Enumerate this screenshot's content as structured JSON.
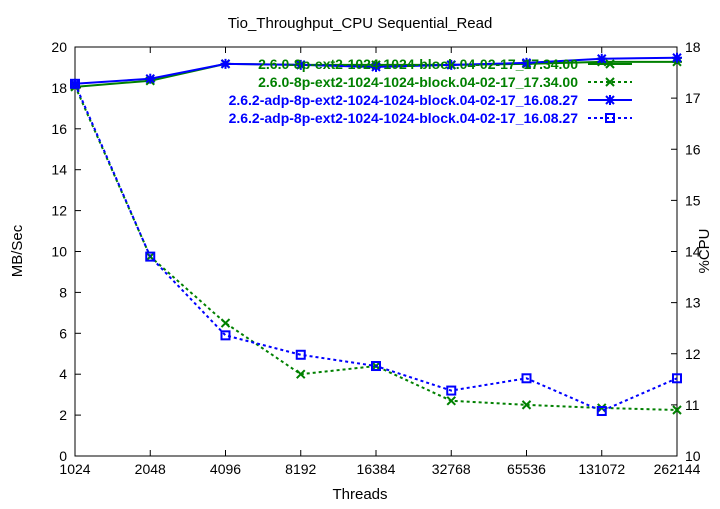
{
  "chart_data": {
    "type": "line",
    "title": "Tio_Throughput_CPU Sequential_Read",
    "xlabel": "Threads",
    "ylabel": "MB/Sec",
    "y2label": "%CPU",
    "x": [
      1024,
      2048,
      4096,
      8192,
      16384,
      32768,
      65536,
      131072,
      262144
    ],
    "x_scale": "log2",
    "ylim": [
      0,
      20
    ],
    "y2lim": [
      10,
      18
    ],
    "yticks": [
      0,
      2,
      4,
      6,
      8,
      10,
      12,
      14,
      16,
      18,
      20
    ],
    "y2ticks": [
      10,
      11,
      12,
      13,
      14,
      15,
      16,
      17,
      18
    ],
    "grid": false,
    "legend_position": "top-right",
    "series": [
      {
        "name": "2.6.0-8p-ext2-1024-1024-block.04-02-17_17.34.00",
        "axis": "y2",
        "style": "solid",
        "marker": "cross",
        "color": "#008000",
        "values": [
          17.22,
          17.34,
          17.67,
          17.65,
          17.65,
          17.65,
          17.67,
          17.71,
          17.71
        ]
      },
      {
        "name": "2.6.0-8p-ext2-1024-1024-block.04-02-17_17.34.00",
        "axis": "y",
        "style": "dotted",
        "marker": "x",
        "color": "#008000",
        "values": [
          18.1,
          9.75,
          6.5,
          4.0,
          4.4,
          2.7,
          2.5,
          2.35,
          2.25
        ]
      },
      {
        "name": "2.6.2-adp-8p-ext2-1024-1024-block.04-02-17_16.08.27",
        "axis": "y2",
        "style": "solid",
        "marker": "star",
        "color": "#0000ff",
        "values": [
          17.28,
          17.38,
          17.67,
          17.65,
          17.61,
          17.65,
          17.69,
          17.77,
          17.79
        ]
      },
      {
        "name": "2.6.2-adp-8p-ext2-1024-1024-block.04-02-17_16.08.27",
        "axis": "y",
        "style": "dotted",
        "marker": "box",
        "color": "#0000ff",
        "values": [
          18.2,
          9.75,
          5.9,
          4.95,
          4.4,
          3.2,
          3.8,
          2.2,
          3.8
        ]
      }
    ]
  }
}
